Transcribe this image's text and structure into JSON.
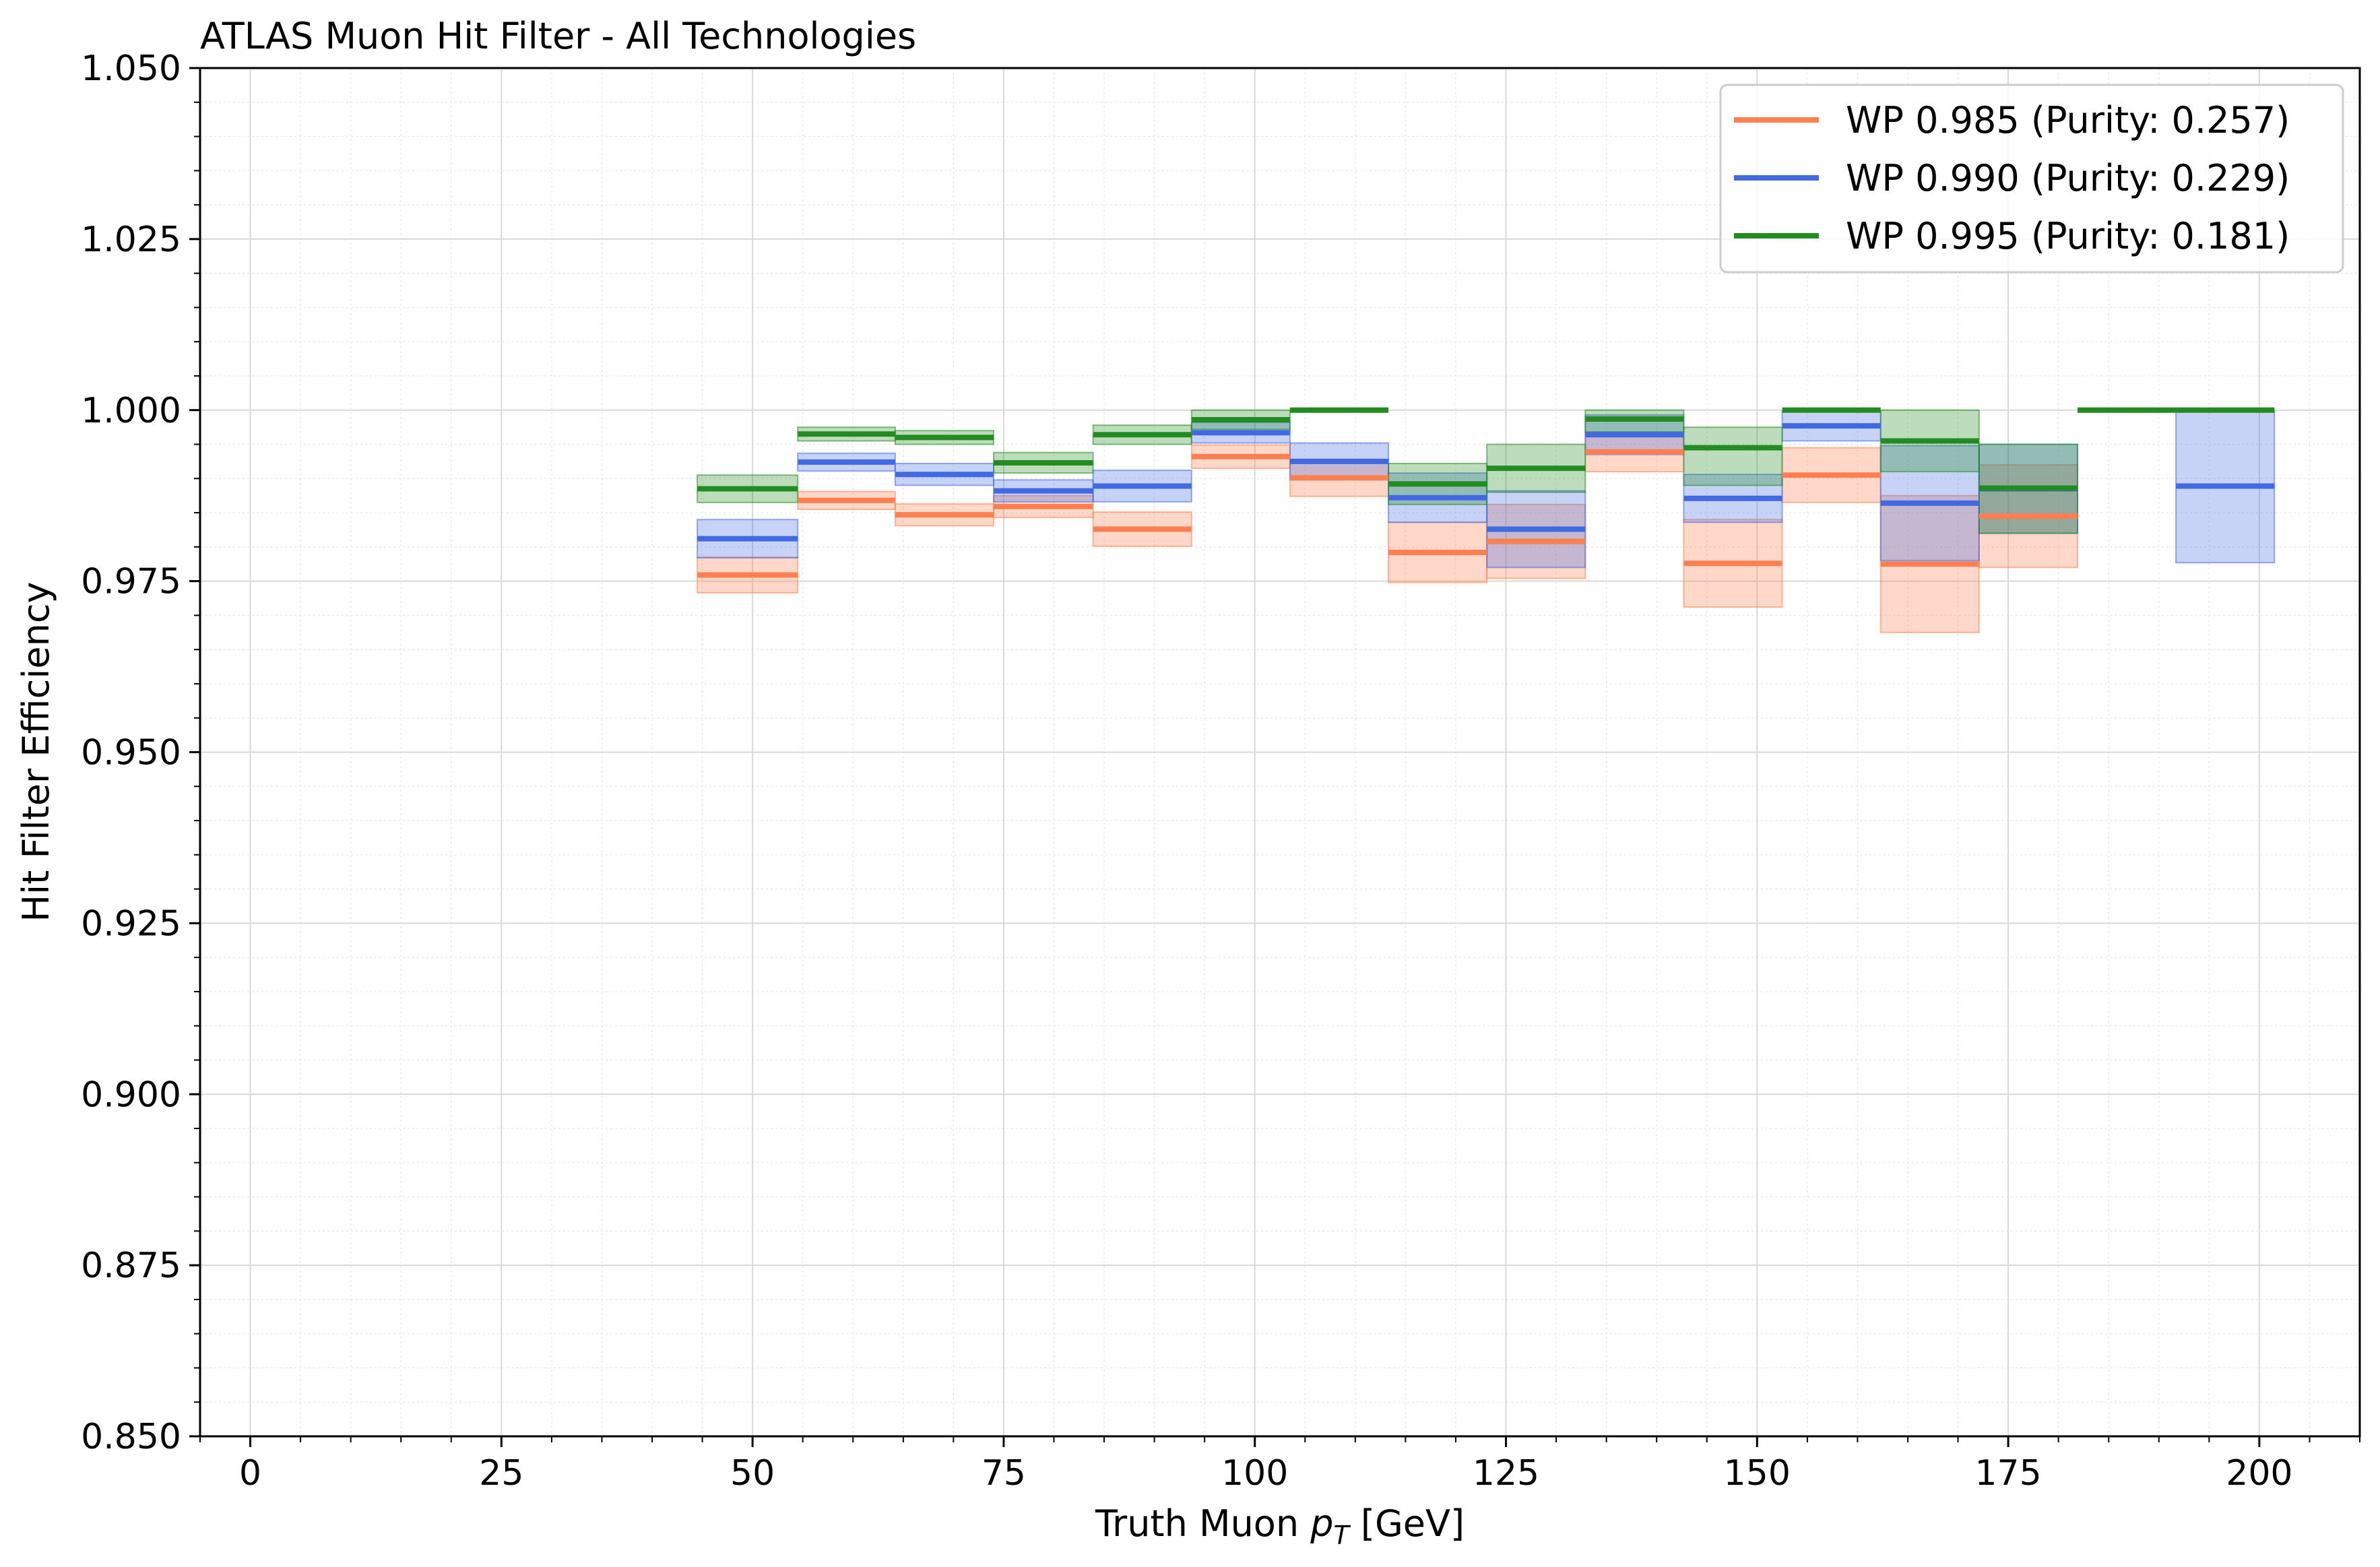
{
  "chart_data": {
    "type": "step",
    "title": "ATLAS Muon Hit Filter - All Technologies",
    "xlabel": "Truth Muon p_T [GeV]",
    "xlabel_parts": {
      "pre": "Truth Muon ",
      "p": "p",
      "sub": "T",
      "post": " [GeV]"
    },
    "ylabel": "Hit Filter Efficiency",
    "xlim": [
      -5,
      210
    ],
    "ylim": [
      0.85,
      1.05
    ],
    "xticks": [
      "0",
      "25",
      "50",
      "75",
      "100",
      "125",
      "150",
      "175",
      "200"
    ],
    "xtick_values": [
      0,
      25,
      50,
      75,
      100,
      125,
      150,
      175,
      200
    ],
    "yticks": [
      "0.850",
      "0.875",
      "0.900",
      "0.925",
      "0.950",
      "0.975",
      "1.000",
      "1.025",
      "1.050"
    ],
    "ytick_values": [
      0.85,
      0.875,
      0.9,
      0.925,
      0.95,
      0.975,
      1.0,
      1.025,
      1.05
    ],
    "grid": true,
    "legend_position": "top-right",
    "bin_edges": [
      44.5,
      54.5,
      64.2,
      74.0,
      83.9,
      93.7,
      103.5,
      113.3,
      123.1,
      132.9,
      142.7,
      152.5,
      162.3,
      172.1,
      181.9,
      191.7,
      201.5
    ],
    "series": [
      {
        "name": "WP 0.985 (Purity: 0.257)",
        "color": "#ff7f50",
        "values": [
          0.9759,
          0.9868,
          0.9847,
          0.9859,
          0.9826,
          0.9932,
          0.9901,
          0.9792,
          0.9808,
          0.9939,
          0.9776,
          0.9905,
          0.9775,
          0.9845,
          null,
          null
        ],
        "lower": [
          0.9733,
          0.9855,
          0.9831,
          0.9843,
          0.9801,
          0.9915,
          0.9874,
          0.9748,
          0.9754,
          0.991,
          0.9712,
          0.9865,
          0.9675,
          0.977,
          null,
          null
        ],
        "upper": [
          0.9785,
          0.9881,
          0.9863,
          0.9875,
          0.9851,
          0.9949,
          0.9928,
          0.9836,
          0.9862,
          0.9968,
          0.984,
          0.9945,
          0.9875,
          0.992,
          null,
          null
        ]
      },
      {
        "name": "WP 0.990 (Purity: 0.229)",
        "color": "#4169e1",
        "values": [
          0.9812,
          0.9924,
          0.9906,
          0.9882,
          0.9889,
          0.9967,
          0.9925,
          0.9872,
          0.9826,
          0.9964,
          0.9871,
          0.9977,
          0.9864,
          0.9885,
          null,
          0.9889
        ],
        "lower": [
          0.9784,
          0.9911,
          0.989,
          0.9866,
          0.9866,
          0.9952,
          0.9898,
          0.9836,
          0.977,
          0.9935,
          0.9836,
          0.9955,
          0.978,
          0.982,
          null,
          0.9777
        ],
        "upper": [
          0.984,
          0.9937,
          0.9922,
          0.9898,
          0.9912,
          0.9982,
          0.9952,
          0.9908,
          0.9882,
          0.9993,
          0.9906,
          0.9999,
          0.9948,
          0.995,
          null,
          1.0
        ]
      },
      {
        "name": "WP 0.995 (Purity: 0.181)",
        "color": "#228b22",
        "values": [
          0.9885,
          0.9965,
          0.996,
          0.9923,
          0.9964,
          0.9986,
          1.0,
          0.9892,
          0.9915,
          0.9987,
          0.9945,
          1.0,
          0.9955,
          0.9886,
          1.0,
          1.0
        ],
        "lower": [
          0.9865,
          0.9955,
          0.995,
          0.9908,
          0.995,
          0.9972,
          null,
          0.9862,
          0.988,
          0.9968,
          0.989,
          null,
          0.991,
          0.982,
          null,
          null
        ],
        "upper": [
          0.9905,
          0.9975,
          0.997,
          0.9938,
          0.9978,
          1.0,
          null,
          0.9922,
          0.995,
          1.0,
          0.9975,
          null,
          1.0,
          0.995,
          null,
          null
        ]
      }
    ]
  }
}
